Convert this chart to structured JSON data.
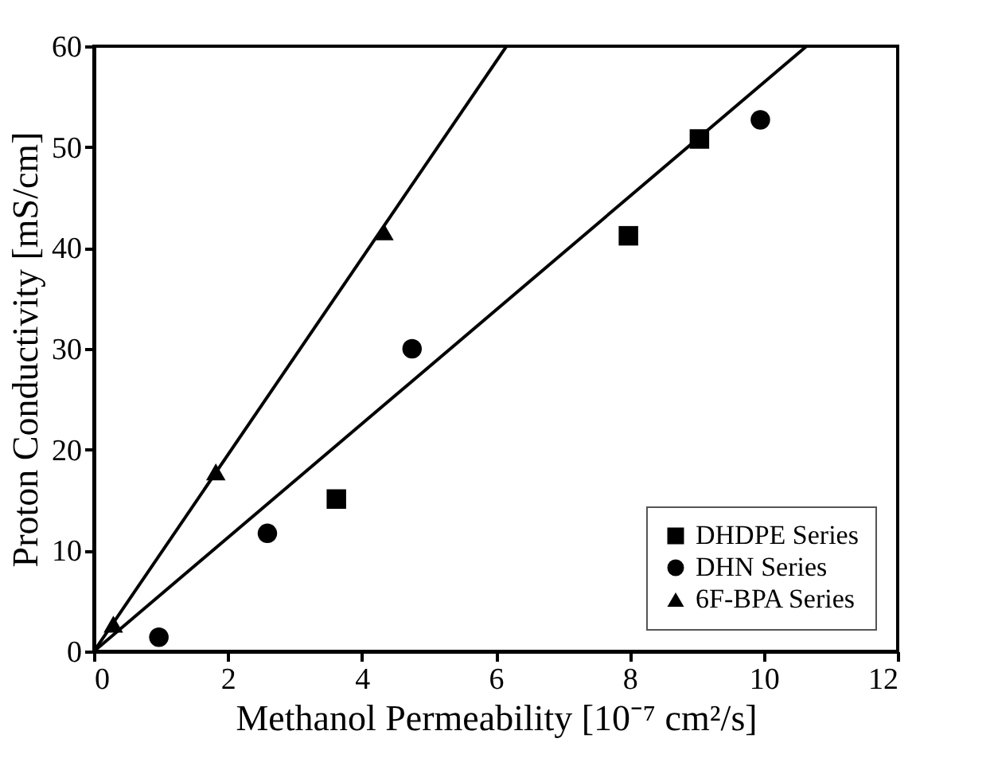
{
  "chart_data": {
    "type": "scatter",
    "xlabel": "Methanol Permeability [10⁻⁷ cm²/s]",
    "ylabel": "Proton Conductivity [mS/cm]",
    "xlim": [
      0,
      12
    ],
    "xticks": [
      0,
      2,
      4,
      6,
      8,
      10,
      12
    ],
    "ylim": [
      0,
      60
    ],
    "yticks": [
      0,
      10,
      20,
      30,
      40,
      50,
      60
    ],
    "grid": false,
    "legend": "bottom right",
    "series": [
      {
        "name": "DHDPE Series",
        "marker": "square",
        "color": "#000000",
        "x": [
          3.62,
          7.98,
          9.04
        ],
        "values": [
          15.1,
          41.2,
          50.8
        ]
      },
      {
        "name": "DHN Series",
        "marker": "circle",
        "color": "#000000",
        "x": [
          0.97,
          2.59,
          4.75,
          9.95
        ],
        "values": [
          1.4,
          11.7,
          30.0,
          52.7
        ]
      },
      {
        "name": "6F-BPA Series",
        "marker": "triangle",
        "color": "#000000",
        "x": [
          0.29,
          1.82,
          4.33
        ],
        "values": [
          2.7,
          17.8,
          41.6
        ]
      },
      {
        "type": "line",
        "color": "#000000",
        "x": [
          0,
          6.16
        ],
        "values": [
          0,
          60
        ]
      },
      {
        "type": "line",
        "color": "#000000",
        "x": [
          0,
          10.64
        ],
        "values": [
          0,
          60
        ]
      }
    ]
  }
}
